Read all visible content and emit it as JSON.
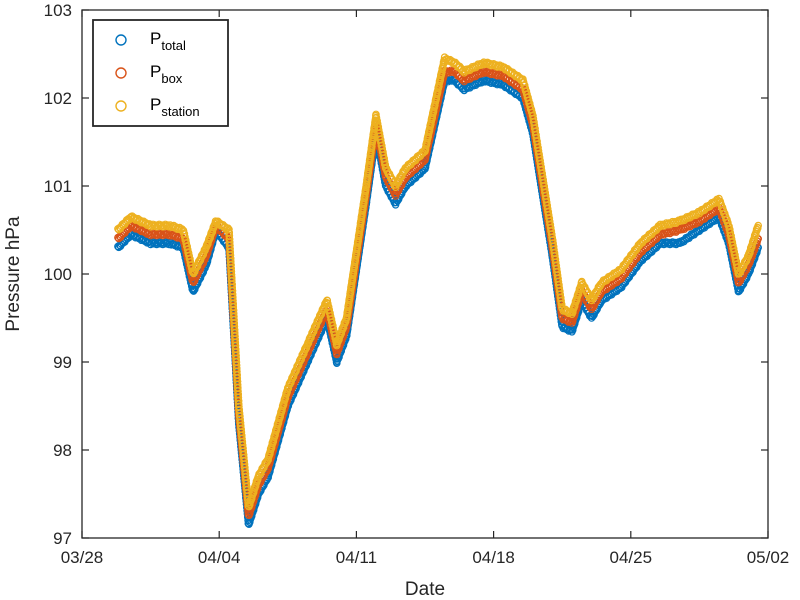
{
  "chart_data": {
    "type": "scatter",
    "xlabel": "Date",
    "ylabel": "Pressure hPa",
    "xlim": [
      "03/28",
      "05/02"
    ],
    "ylim": [
      97,
      103
    ],
    "x_ticks": [
      "03/28",
      "04/04",
      "04/11",
      "04/18",
      "04/25",
      "05/02"
    ],
    "y_ticks": [
      "97",
      "98",
      "99",
      "100",
      "101",
      "102",
      "103"
    ],
    "grid": false,
    "legend_position": "top-left",
    "x": [
      "03/29 20:00",
      "03/30 12:00",
      "03/31 12:00",
      "04/01 12:00",
      "04/02 04:00",
      "04/02 16:00",
      "04/03 08:00",
      "04/03 20:00",
      "04/04 12:00",
      "04/05 00:00",
      "04/05 12:00",
      "04/06 00:00",
      "04/06 12:00",
      "04/07 12:00",
      "04/08 12:00",
      "04/09 00:00",
      "04/09 12:00",
      "04/10 00:00",
      "04/10 12:00",
      "04/11 12:00",
      "04/12 00:00",
      "04/12 12:00",
      "04/13 00:00",
      "04/13 12:00",
      "04/14 12:00",
      "04/15 12:00",
      "04/16 00:00",
      "04/16 12:00",
      "04/17 12:00",
      "04/18 12:00",
      "04/19 12:00",
      "04/20 00:00",
      "04/21 00:00",
      "04/21 12:00",
      "04/22 00:00",
      "04/22 12:00",
      "04/23 00:00",
      "04/23 12:00",
      "04/24 12:00",
      "04/25 12:00",
      "04/26 12:00",
      "04/27 12:00",
      "04/28 12:00",
      "04/29 12:00",
      "04/30 00:00",
      "04/30 12:00",
      "05/01 00:00",
      "05/01 12:00"
    ],
    "series": [
      {
        "name": "P_total",
        "label_main": "P",
        "label_sub": "total",
        "color": "#0072BD",
        "values": [
          100.3,
          100.45,
          100.35,
          100.35,
          100.3,
          99.8,
          100.1,
          100.5,
          100.3,
          98.3,
          97.15,
          97.5,
          97.7,
          98.5,
          99.0,
          99.25,
          99.5,
          99.0,
          99.3,
          100.8,
          101.6,
          101.0,
          100.8,
          101.0,
          101.2,
          102.2,
          102.2,
          102.1,
          102.2,
          102.15,
          102.0,
          101.6,
          100.2,
          99.4,
          99.35,
          99.7,
          99.5,
          99.7,
          99.85,
          100.15,
          100.35,
          100.35,
          100.5,
          100.65,
          100.35,
          99.8,
          100.0,
          100.3
        ]
      },
      {
        "name": "P_box",
        "label_main": "P",
        "label_sub": "box",
        "color": "#D95319",
        "values": [
          100.4,
          100.55,
          100.45,
          100.45,
          100.4,
          99.9,
          100.2,
          100.55,
          100.4,
          98.4,
          97.25,
          97.6,
          97.8,
          98.6,
          99.1,
          99.35,
          99.6,
          99.1,
          99.4,
          100.9,
          101.7,
          101.1,
          100.9,
          101.1,
          101.3,
          102.3,
          102.3,
          102.2,
          102.3,
          102.25,
          102.1,
          101.7,
          100.3,
          99.5,
          99.45,
          99.8,
          99.6,
          99.8,
          99.95,
          100.25,
          100.45,
          100.5,
          100.6,
          100.75,
          100.45,
          99.9,
          100.1,
          100.4
        ]
      },
      {
        "name": "P_station",
        "label_main": "P",
        "label_sub": "station",
        "color": "#EDB120",
        "values": [
          100.5,
          100.65,
          100.55,
          100.55,
          100.5,
          100.0,
          100.3,
          100.6,
          100.5,
          98.5,
          97.35,
          97.7,
          97.9,
          98.7,
          99.2,
          99.45,
          99.7,
          99.2,
          99.5,
          101.0,
          101.8,
          101.2,
          101.0,
          101.2,
          101.4,
          102.45,
          102.4,
          102.3,
          102.4,
          102.35,
          102.2,
          101.8,
          100.4,
          99.6,
          99.55,
          99.9,
          99.7,
          99.9,
          100.05,
          100.35,
          100.55,
          100.6,
          100.7,
          100.85,
          100.55,
          100.0,
          100.2,
          100.55
        ]
      }
    ]
  }
}
